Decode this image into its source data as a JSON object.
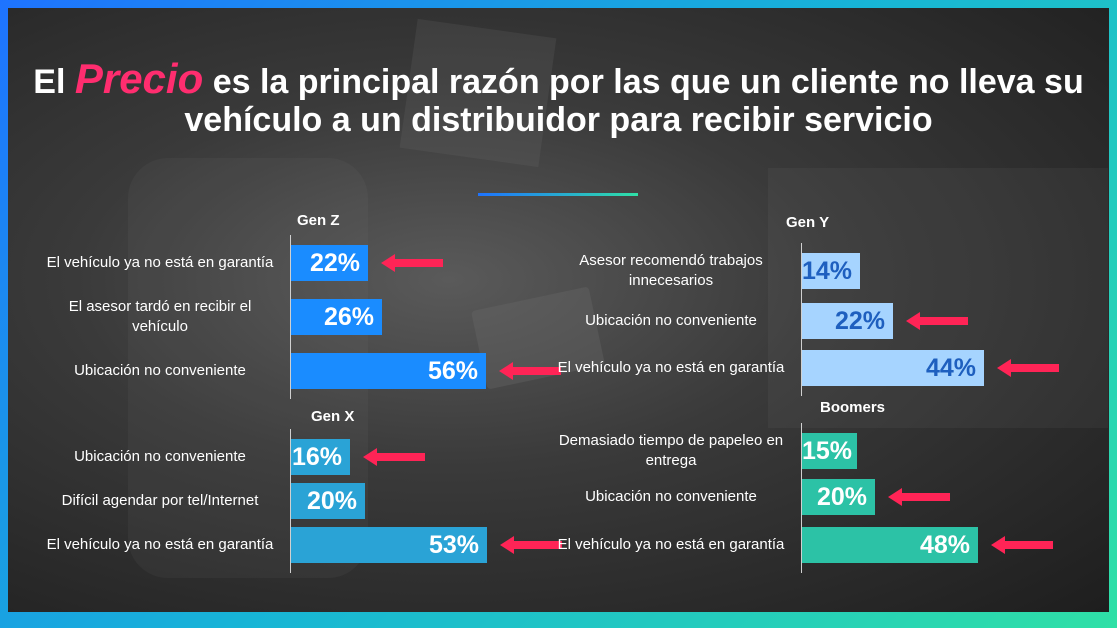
{
  "title": {
    "before": "El ",
    "highlight": "Precio",
    "after": " es la principal razón por las que un cliente no lleva su vehículo a un distribuidor para recibir servicio"
  },
  "colors": {
    "genz": "#1a8cff",
    "geny": "#a6d4ff",
    "geny_text": "#1e5fbf",
    "genx": "#2aa3d6",
    "boomers": "#2cc2a6",
    "arrow": "#ff2456"
  },
  "chart_data": [
    {
      "type": "bar",
      "title": "Gen Z",
      "categories": [
        "El vehículo ya no está en garantía",
        "El asesor tardó en recibir el vehículo",
        "Ubicación no conveniente"
      ],
      "values": [
        22,
        26,
        56
      ],
      "labels": [
        "22%",
        "26%",
        "56%"
      ],
      "highlighted": [
        true,
        false,
        true
      ],
      "xlim": [
        0,
        56
      ]
    },
    {
      "type": "bar",
      "title": "Gen Y",
      "categories": [
        "Asesor recomendó trabajos innecesarios",
        "Ubicación no conveniente",
        "El vehículo ya no está en garantía"
      ],
      "values": [
        14,
        22,
        44
      ],
      "labels": [
        "14%",
        "22%",
        "44%"
      ],
      "highlighted": [
        false,
        true,
        true
      ],
      "xlim": [
        0,
        44
      ]
    },
    {
      "type": "bar",
      "title": "Gen X",
      "categories": [
        "Ubicación no conveniente",
        "Difícil agendar por tel/Internet",
        "El vehículo ya no está en garantía"
      ],
      "values": [
        16,
        20,
        53
      ],
      "labels": [
        "16%",
        "20%",
        "53%"
      ],
      "highlighted": [
        true,
        false,
        true
      ],
      "xlim": [
        0,
        53
      ]
    },
    {
      "type": "bar",
      "title": "Boomers",
      "categories": [
        "Demasiado tiempo de papeleo en entrega",
        "Ubicación no conveniente",
        "El vehículo ya no está en garantía"
      ],
      "values": [
        15,
        20,
        48
      ],
      "labels": [
        "15%",
        "20%",
        "48%"
      ],
      "highlighted": [
        false,
        true,
        true
      ],
      "xlim": [
        0,
        48
      ]
    }
  ]
}
